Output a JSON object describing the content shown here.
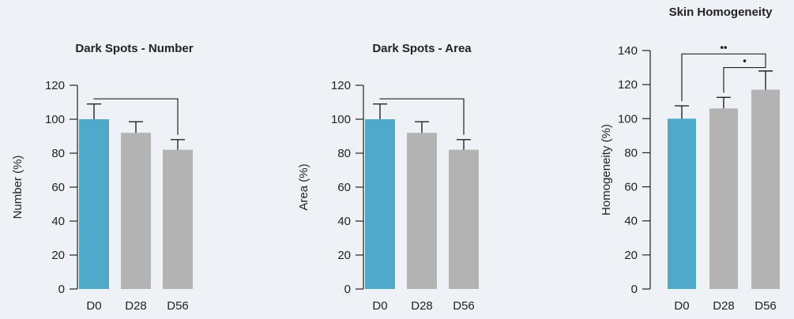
{
  "chart_data": [
    {
      "type": "bar",
      "title": "Dark Spots - Number",
      "xlabel": "",
      "ylabel": "Number (%)",
      "ylim": [
        0,
        120
      ],
      "yticks": [
        0,
        20,
        40,
        60,
        80,
        100,
        120
      ],
      "categories": [
        "D0",
        "D28",
        "D56"
      ],
      "values": [
        100,
        92,
        82
      ],
      "errors": [
        9,
        6.5,
        6
      ],
      "bar_colors": [
        "#4fa9c9",
        "#b3b3b3",
        "#b3b3b3"
      ],
      "grid": false,
      "significance": [
        {
          "from": "D0",
          "to": "D56",
          "label": ""
        }
      ]
    },
    {
      "type": "bar",
      "title": "Dark Spots - Area",
      "xlabel": "",
      "ylabel": "Area (%)",
      "ylim": [
        0,
        120
      ],
      "yticks": [
        0,
        20,
        40,
        60,
        80,
        100,
        120
      ],
      "categories": [
        "D0",
        "D28",
        "D56"
      ],
      "values": [
        100,
        92,
        82
      ],
      "errors": [
        9,
        6.5,
        6
      ],
      "bar_colors": [
        "#4fa9c9",
        "#b3b3b3",
        "#b3b3b3"
      ],
      "grid": false,
      "significance": [
        {
          "from": "D0",
          "to": "D56",
          "label": ""
        }
      ]
    },
    {
      "type": "bar",
      "title": "Skin Homogeneity",
      "xlabel": "",
      "ylabel": "Homogeneity (%)",
      "ylim": [
        0,
        140
      ],
      "yticks": [
        0,
        20,
        40,
        60,
        80,
        100,
        120,
        140
      ],
      "categories": [
        "D0",
        "D28",
        "D56"
      ],
      "values": [
        100,
        106,
        117
      ],
      "errors": [
        7.5,
        6.5,
        11
      ],
      "bar_colors": [
        "#4fa9c9",
        "#b3b3b3",
        "#b3b3b3"
      ],
      "grid": false,
      "significance": [
        {
          "from": "D0",
          "to": "D56",
          "label": "••"
        },
        {
          "from": "D28",
          "to": "D56",
          "label": "•"
        }
      ]
    }
  ]
}
